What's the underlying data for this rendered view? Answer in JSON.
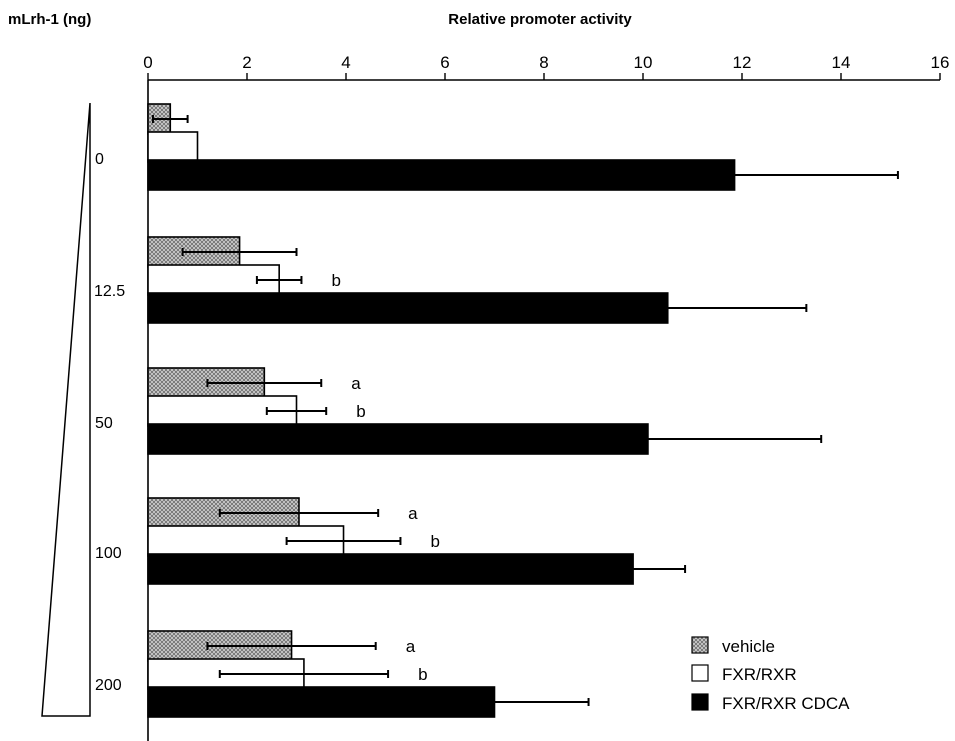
{
  "colors": {
    "vehicle": "#bdbdbd",
    "fxr_rxr": "#ffffff",
    "fxr_rxr_cdca": "#000000",
    "axis": "#000000"
  },
  "chart_data": {
    "type": "bar",
    "orientation": "horizontal",
    "title": "Relative promoter activity",
    "row_header": "mLrh-1  (ng)",
    "categories": [
      "0",
      "12.5",
      "50",
      "100",
      "200"
    ],
    "xlim": [
      0,
      16
    ],
    "x_ticks": [
      0,
      2,
      4,
      6,
      8,
      10,
      12,
      14,
      16
    ],
    "axis_position": "top",
    "grid": false,
    "legend_position": "bottom-right",
    "series": [
      {
        "name": "vehicle",
        "pattern": "crosshatch",
        "values": [
          0.45,
          1.85,
          2.35,
          3.05,
          2.9
        ],
        "errors": [
          0.35,
          1.15,
          1.15,
          1.6,
          1.7
        ],
        "annotations": [
          "",
          "",
          "a",
          "a",
          "a"
        ]
      },
      {
        "name": "FXR/RXR",
        "pattern": "open",
        "values": [
          1.0,
          2.65,
          3.0,
          3.95,
          3.15
        ],
        "errors": [
          0,
          0.45,
          0.6,
          1.15,
          1.7
        ],
        "annotations": [
          "",
          "b",
          "b",
          "b",
          "b"
        ]
      },
      {
        "name": "FXR/RXR CDCA",
        "pattern": "solid",
        "values": [
          11.85,
          10.5,
          10.1,
          9.8,
          7.0
        ],
        "errors": [
          3.3,
          2.8,
          3.5,
          1.05,
          1.9
        ],
        "annotations": [
          "",
          "",
          "",
          "",
          ""
        ]
      }
    ]
  }
}
